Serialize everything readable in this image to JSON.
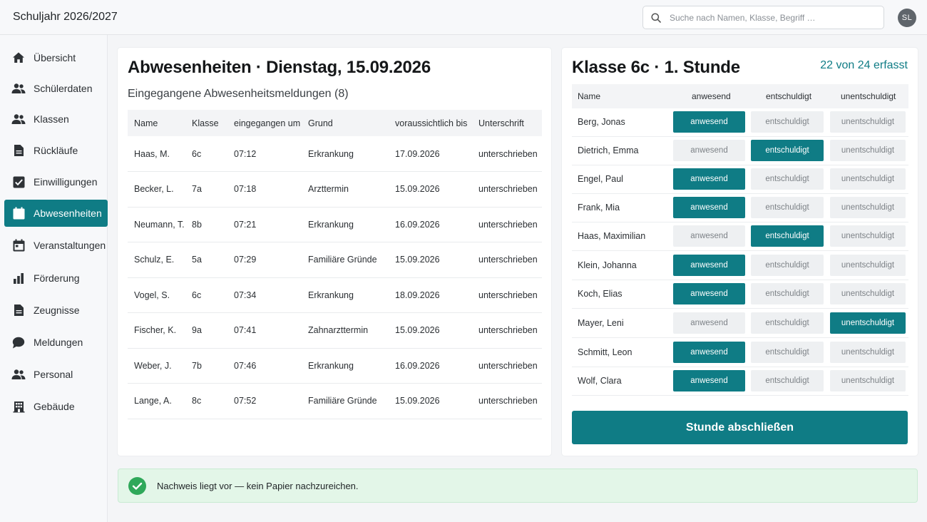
{
  "header": {
    "title": "Schuljahr 2026/2027",
    "search_placeholder": "Suche nach Namen, Klasse, Begriff …",
    "avatar_initials": "SL"
  },
  "sidebar": {
    "items": [
      {
        "label": "Übersicht",
        "icon": "home-icon",
        "active": false
      },
      {
        "label": "Schülerdaten",
        "icon": "people-icon",
        "active": false
      },
      {
        "label": "Klassen",
        "icon": "people-icon",
        "active": false
      },
      {
        "label": "Rückläufe",
        "icon": "document-icon",
        "active": false
      },
      {
        "label": "Einwilligungen",
        "icon": "checkbox-icon",
        "active": false
      },
      {
        "label": "Abwesenheiten",
        "icon": "calendar-icon",
        "active": true
      },
      {
        "label": "Veranstaltungen",
        "icon": "calendar-icon",
        "active": false
      },
      {
        "label": "Förderung",
        "icon": "bar-chart-icon",
        "active": false
      },
      {
        "label": "Zeugnisse",
        "icon": "document-icon",
        "active": false
      },
      {
        "label": "Meldungen",
        "icon": "chat-bubble-icon",
        "active": false
      },
      {
        "label": "Personal",
        "icon": "people-icon",
        "active": false
      },
      {
        "label": "Gebäude",
        "icon": "building-icon",
        "active": false
      }
    ]
  },
  "absences": {
    "title": "Abwesenheiten · Dienstag, 15.09.2026",
    "subtitle": "Eingegangene Abwesenheitsmeldungen (8)",
    "columns": [
      "Name",
      "Klasse",
      "eingegangen um",
      "Grund",
      "voraussichtlich bis",
      "Unterschrift"
    ],
    "rows": [
      [
        "Haas, M.",
        "6c",
        "07:12",
        "Erkrankung",
        "17.09.2026",
        "unterschrieben"
      ],
      [
        "Becker, L.",
        "7a",
        "07:18",
        "Arzttermin",
        "15.09.2026",
        "unterschrieben"
      ],
      [
        "Neumann, T.",
        "8b",
        "07:21",
        "Erkrankung",
        "16.09.2026",
        "unterschrieben"
      ],
      [
        "Schulz, E.",
        "5a",
        "07:29",
        "Familiäre Gründe",
        "15.09.2026",
        "unterschrieben"
      ],
      [
        "Vogel, S.",
        "6c",
        "07:34",
        "Erkrankung",
        "18.09.2026",
        "unterschrieben"
      ],
      [
        "Fischer, K.",
        "9a",
        "07:41",
        "Zahnarzttermin",
        "15.09.2026",
        "unterschrieben"
      ],
      [
        "Weber, J.",
        "7b",
        "07:46",
        "Erkrankung",
        "16.09.2026",
        "unterschrieben"
      ],
      [
        "Lange, A.",
        "8c",
        "07:52",
        "Familiäre Gründe",
        "15.09.2026",
        "unterschrieben"
      ]
    ]
  },
  "attendance": {
    "title": "Klasse 6c  ·  1. Stunde",
    "count_done": "22 von 24",
    "count_suffix": "erfasst",
    "columns": {
      "name": "Name",
      "present": "anwesend",
      "excused": "entschuldigt",
      "unexcused": "unentschuldigt"
    },
    "students": [
      {
        "name": "Berg, Jonas",
        "status": "anwesend"
      },
      {
        "name": "Dietrich, Emma",
        "status": "entschuldigt"
      },
      {
        "name": "Engel, Paul",
        "status": "anwesend"
      },
      {
        "name": "Frank, Mia",
        "status": "anwesend"
      },
      {
        "name": "Haas, Maximilian",
        "status": "entschuldigt"
      },
      {
        "name": "Klein, Johanna",
        "status": "anwesend"
      },
      {
        "name": "Koch, Elias",
        "status": "anwesend"
      },
      {
        "name": "Mayer, Leni",
        "status": "unentschuldigt"
      },
      {
        "name": "Schmitt, Leon",
        "status": "anwesend"
      },
      {
        "name": "Wolf, Clara",
        "status": "anwesend"
      }
    ],
    "finish_label": "Stunde abschließen"
  },
  "notice": {
    "message": "Nachweis liegt vor — kein Papier nachzureichen."
  },
  "colors": {
    "accent": "#0f7c85",
    "success": "#2fa85a",
    "success_bg": "#e3f6e8"
  }
}
